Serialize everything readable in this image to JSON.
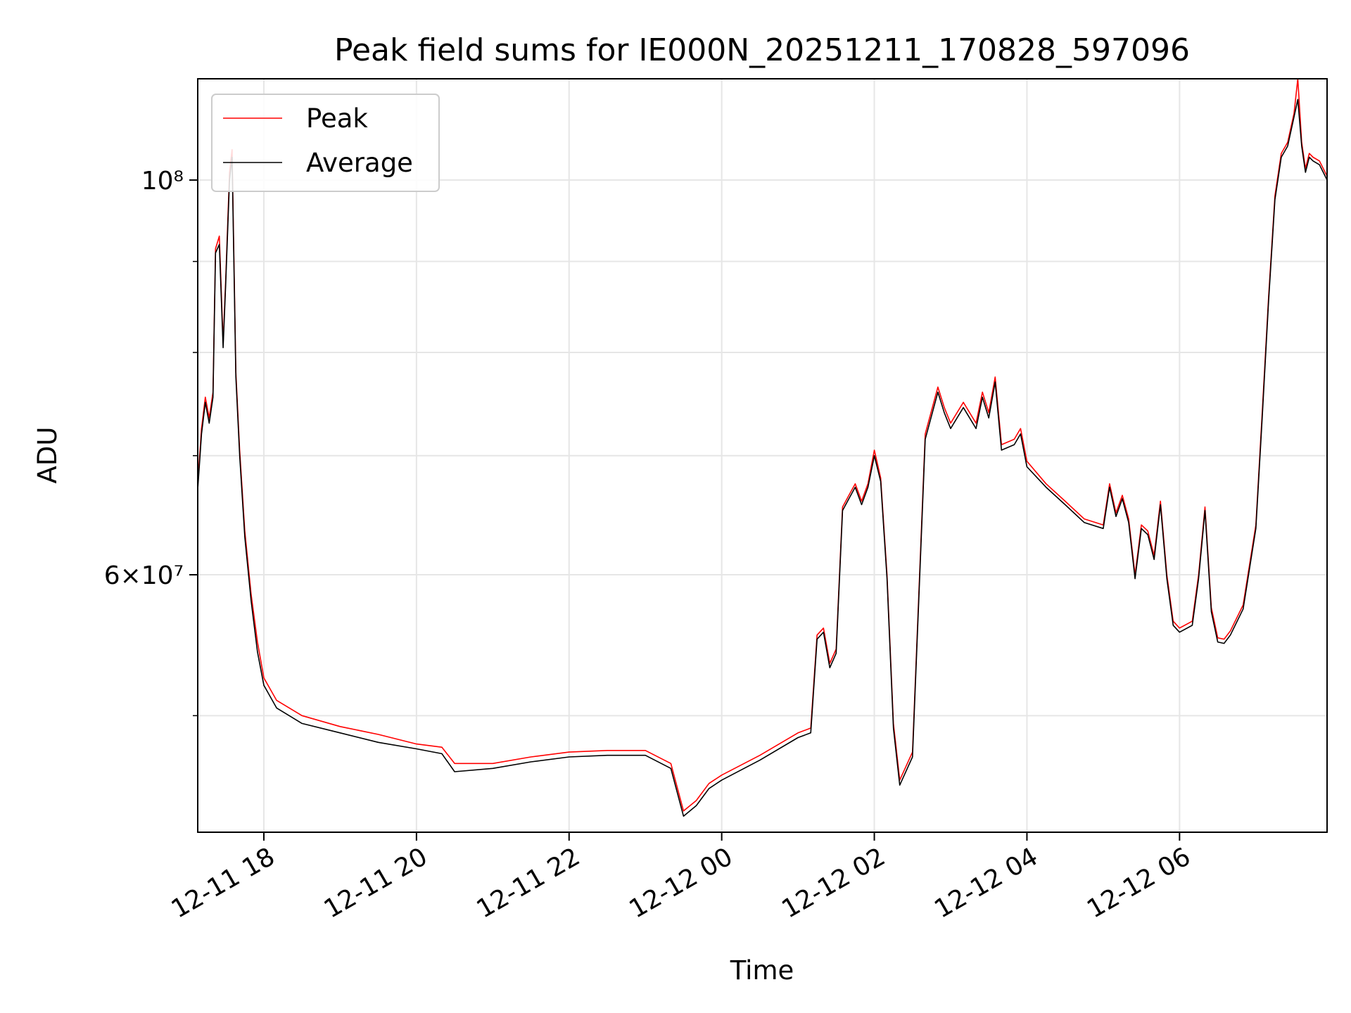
{
  "chart_data": {
    "type": "line",
    "title": "Peak field sums for IE000N_20251211_170828_597096",
    "xlabel": "Time",
    "ylabel": "ADU",
    "x_scale": "time",
    "y_scale": "log",
    "xlim": [
      "2025-12-11 17:08",
      "2025-12-12 07:56"
    ],
    "ylim": [
      43000000,
      114000000
    ],
    "grid": true,
    "legend_position": "top-left",
    "x_ticks": [
      "12-11 18",
      "12-11 20",
      "12-11 22",
      "12-12 00",
      "12-12 02",
      "12-12 04",
      "12-12 06"
    ],
    "x_tick_times": [
      "2025-12-11 18:00",
      "2025-12-11 20:00",
      "2025-12-11 22:00",
      "2025-12-12 00:00",
      "2025-12-12 02:00",
      "2025-12-12 04:00",
      "2025-12-12 06:00"
    ],
    "y_major_ticks": [
      {
        "value": 60000000,
        "label": "6×10⁷"
      },
      {
        "value": 100000000,
        "label": "10⁸"
      }
    ],
    "y_minor_ticks": [
      50000000,
      70000000,
      80000000,
      90000000
    ],
    "x": [
      "2025-12-11 17:08",
      "2025-12-11 17:11",
      "2025-12-11 17:14",
      "2025-12-11 17:17",
      "2025-12-11 17:20",
      "2025-12-11 17:22",
      "2025-12-11 17:25",
      "2025-12-11 17:28",
      "2025-12-11 17:30",
      "2025-12-11 17:33",
      "2025-12-11 17:35",
      "2025-12-11 17:38",
      "2025-12-11 17:41",
      "2025-12-11 17:45",
      "2025-12-11 17:50",
      "2025-12-11 17:55",
      "2025-12-11 18:00",
      "2025-12-11 18:10",
      "2025-12-11 18:30",
      "2025-12-11 19:00",
      "2025-12-11 19:30",
      "2025-12-11 20:00",
      "2025-12-11 20:20",
      "2025-12-11 20:30",
      "2025-12-11 21:00",
      "2025-12-11 21:30",
      "2025-12-11 22:00",
      "2025-12-11 22:30",
      "2025-12-11 23:00",
      "2025-12-11 23:20",
      "2025-12-11 23:30",
      "2025-12-11 23:40",
      "2025-12-11 23:50",
      "2025-12-12 00:00",
      "2025-12-12 00:30",
      "2025-12-12 01:00",
      "2025-12-12 01:10",
      "2025-12-12 01:15",
      "2025-12-12 01:20",
      "2025-12-12 01:25",
      "2025-12-12 01:30",
      "2025-12-12 01:35",
      "2025-12-12 01:40",
      "2025-12-12 01:45",
      "2025-12-12 01:50",
      "2025-12-12 01:55",
      "2025-12-12 02:00",
      "2025-12-12 02:05",
      "2025-12-12 02:10",
      "2025-12-12 02:15",
      "2025-12-12 02:20",
      "2025-12-12 02:30",
      "2025-12-12 02:40",
      "2025-12-12 02:50",
      "2025-12-12 02:55",
      "2025-12-12 03:00",
      "2025-12-12 03:10",
      "2025-12-12 03:20",
      "2025-12-12 03:25",
      "2025-12-12 03:30",
      "2025-12-12 03:35",
      "2025-12-12 03:40",
      "2025-12-12 03:50",
      "2025-12-12 03:55",
      "2025-12-12 04:00",
      "2025-12-12 04:15",
      "2025-12-12 04:30",
      "2025-12-12 04:45",
      "2025-12-12 05:00",
      "2025-12-12 05:05",
      "2025-12-12 05:10",
      "2025-12-12 05:15",
      "2025-12-12 05:20",
      "2025-12-12 05:25",
      "2025-12-12 05:30",
      "2025-12-12 05:35",
      "2025-12-12 05:40",
      "2025-12-12 05:45",
      "2025-12-12 05:50",
      "2025-12-12 05:55",
      "2025-12-12 06:00",
      "2025-12-12 06:10",
      "2025-12-12 06:15",
      "2025-12-12 06:20",
      "2025-12-12 06:25",
      "2025-12-12 06:30",
      "2025-12-12 06:35",
      "2025-12-12 06:40",
      "2025-12-12 06:50",
      "2025-12-12 07:00",
      "2025-12-12 07:05",
      "2025-12-12 07:10",
      "2025-12-12 07:15",
      "2025-12-12 07:20",
      "2025-12-12 07:25",
      "2025-12-12 07:30",
      "2025-12-12 07:33",
      "2025-12-12 07:36",
      "2025-12-12 07:39",
      "2025-12-12 07:42",
      "2025-12-12 07:45",
      "2025-12-12 07:50",
      "2025-12-12 07:53",
      "2025-12-12 07:56"
    ],
    "series": [
      {
        "name": "Peak",
        "color": "#ff0000",
        "values": [
          67500000,
          72500000,
          75500000,
          73500000,
          76000000,
          91500000,
          93000000,
          81000000,
          88000000,
          101000000,
          104000000,
          78000000,
          70500000,
          63500000,
          58500000,
          55000000,
          52500000,
          51000000,
          50000000,
          49300000,
          48800000,
          48200000,
          48000000,
          47000000,
          47000000,
          47400000,
          47700000,
          47800000,
          47800000,
          47000000,
          44200000,
          44800000,
          45800000,
          46300000,
          47500000,
          48900000,
          49200000,
          55500000,
          56000000,
          53500000,
          54500000,
          65500000,
          66500000,
          67500000,
          66000000,
          67500000,
          70500000,
          68000000,
          60000000,
          49500000,
          46000000,
          47700000,
          72000000,
          76500000,
          74500000,
          73000000,
          75000000,
          73000000,
          76000000,
          74000000,
          77500000,
          71000000,
          71500000,
          72500000,
          69500000,
          67500000,
          66000000,
          64500000,
          64000000,
          67500000,
          65000000,
          66500000,
          64500000,
          60000000,
          64000000,
          63500000,
          61500000,
          66000000,
          60000000,
          56500000,
          56000000,
          56500000,
          60000000,
          65500000,
          57500000,
          55300000,
          55200000,
          55800000,
          57700000,
          64000000,
          74000000,
          86000000,
          98000000,
          103500000,
          105000000,
          109000000,
          114000000,
          105000000,
          101500000,
          103500000,
          103000000,
          102500000,
          101500000,
          100500000
        ]
      },
      {
        "name": "Average",
        "color": "#000000",
        "values": [
          67000000,
          72000000,
          75000000,
          73000000,
          75500000,
          91000000,
          92000000,
          80500000,
          87500000,
          100000000,
          103000000,
          77500000,
          70000000,
          63000000,
          58000000,
          54300000,
          52000000,
          50500000,
          49500000,
          48900000,
          48300000,
          47900000,
          47600000,
          46500000,
          46700000,
          47100000,
          47400000,
          47500000,
          47500000,
          46700000,
          43900000,
          44500000,
          45500000,
          46000000,
          47200000,
          48600000,
          48900000,
          55200000,
          55700000,
          53200000,
          54200000,
          65200000,
          66200000,
          67200000,
          65700000,
          67200000,
          70000000,
          67700000,
          59700000,
          49200000,
          45700000,
          47400000,
          71500000,
          76000000,
          74000000,
          72500000,
          74500000,
          72500000,
          75500000,
          73500000,
          77000000,
          70500000,
          71000000,
          72000000,
          69000000,
          67200000,
          65700000,
          64200000,
          63700000,
          67200000,
          64700000,
          66200000,
          64200000,
          59700000,
          63700000,
          63200000,
          61200000,
          65700000,
          59700000,
          56200000,
          55700000,
          56200000,
          59700000,
          65200000,
          57200000,
          55000000,
          54900000,
          55500000,
          57400000,
          63700000,
          73500000,
          85500000,
          97500000,
          103000000,
          104500000,
          108500000,
          111000000,
          104500000,
          101000000,
          103000000,
          102500000,
          102000000,
          101000000,
          100000000
        ]
      }
    ]
  }
}
